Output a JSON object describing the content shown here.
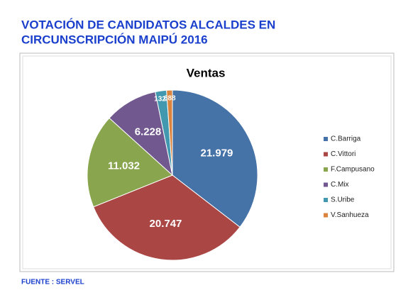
{
  "header": {
    "title": [
      "VOTACIÓN DE CANDIDATOS ALCALDES  EN",
      "CIRCUNSCRIPCIÓN MAIPÚ  2016"
    ]
  },
  "footer": "FUENTE : SERVEL",
  "chart_data": {
    "type": "pie",
    "title": "Ventas",
    "categories": [
      "C.Barriga",
      "C.Vittori",
      "F.Campusano",
      "C.Mix",
      "S.Uribe",
      "V.Sanhueza"
    ],
    "values": [
      21979,
      20747,
      11032,
      6228,
      1321,
      688
    ],
    "value_labels": [
      "21.979",
      "20.747",
      "11.032",
      "6.228",
      "1321",
      "688"
    ],
    "colors": [
      "#4572a7",
      "#aa4643",
      "#89a54e",
      "#71588f",
      "#4198af",
      "#db843d"
    ],
    "legend": "right"
  }
}
